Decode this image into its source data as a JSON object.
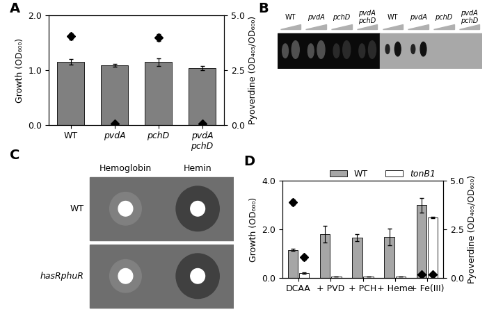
{
  "chart_data": [
    {
      "panel": "A",
      "type": "bar",
      "categories": [
        "WT",
        "pvdA",
        "pchD",
        "pvdA\npchD"
      ],
      "ylabel": "Growth (OD₆₀₀)",
      "y2label": "Pyoverdine (OD₄₀₅/OD₆₀₀)",
      "ylim": [
        0,
        2
      ],
      "yticks": [
        {
          "value": 0,
          "label": "0.0"
        },
        {
          "value": 1,
          "label": "1.0"
        },
        {
          "value": 2,
          "label": "2.0"
        }
      ],
      "y2lim": [
        0,
        5
      ],
      "y2ticks": [
        {
          "value": 0,
          "label": "0.0"
        },
        {
          "value": 2.5,
          "label": "2.5"
        },
        {
          "value": 5,
          "label": "5.0"
        }
      ],
      "series": [
        {
          "type": "bar",
          "color": "#808080",
          "values": [
            1.15,
            1.09,
            1.15,
            1.04
          ],
          "errors": [
            0.05,
            0.02,
            0.07,
            0.04
          ]
        },
        {
          "type": "scatter",
          "axis": "y2",
          "marker": "D",
          "color": "#000000",
          "values": [
            4.05,
            0.05,
            4.0,
            0.05
          ],
          "errors": [
            0.15,
            0.02,
            0.15,
            0.02
          ]
        }
      ]
    },
    {
      "panel": "D",
      "type": "bar",
      "categories": [
        "DCAA",
        "+ PVD",
        "+ PCH",
        "+ Heme",
        "+ Fe(III)"
      ],
      "ylabel": "Growth (OD₆₀₀)",
      "y2label": "Pyoverdine (OD₄₀₅/OD₆₀₀)",
      "ylim": [
        0,
        4
      ],
      "yticks": [
        {
          "value": 0,
          "label": "0.0"
        },
        {
          "value": 2,
          "label": "2.0"
        },
        {
          "value": 4,
          "label": "4.0"
        }
      ],
      "y2lim": [
        0,
        5
      ],
      "y2ticks": [
        {
          "value": 0,
          "label": "0.0"
        },
        {
          "value": 2.5,
          "label": "2.5"
        },
        {
          "value": 5,
          "label": "5.0"
        }
      ],
      "legend": "upper right",
      "series": [
        {
          "name": "WT",
          "type": "bar",
          "color": "#a6a6a6",
          "values": [
            1.15,
            1.8,
            1.65,
            1.68,
            3.0
          ],
          "errors": [
            0.05,
            0.35,
            0.15,
            0.35,
            0.3
          ]
        },
        {
          "name": "tonB1",
          "type": "bar",
          "color": "#ffffff",
          "values": [
            0.2,
            0.05,
            0.05,
            0.05,
            2.5
          ],
          "errors": [
            0.03,
            0.01,
            0.01,
            0.01,
            0.03
          ]
        },
        {
          "type": "scatter",
          "axis": "y2",
          "marker": "D",
          "color": "#000000",
          "values": [
            3.9,
            null,
            null,
            null,
            0.15
          ],
          "errors": [
            0.15,
            null,
            null,
            null,
            0.02
          ]
        },
        {
          "type": "scatter",
          "axis": "y2",
          "marker": "D",
          "color": "#000000",
          "values": [
            1.05,
            null,
            null,
            null,
            0.15
          ],
          "errors": [
            0.12,
            null,
            null,
            null,
            0.02
          ]
        }
      ]
    }
  ],
  "gel": {
    "panel": "B",
    "lanes": [
      "WT",
      "pvdA",
      "pchD",
      "pvdA\npchD",
      "WT",
      "pvdA",
      "pchD",
      "pvdA\npchD"
    ]
  },
  "plates": {
    "panel": "C",
    "columns": [
      "Hemoglobin",
      "Hemin"
    ],
    "rows": [
      "WT",
      "hasRphuR"
    ]
  }
}
